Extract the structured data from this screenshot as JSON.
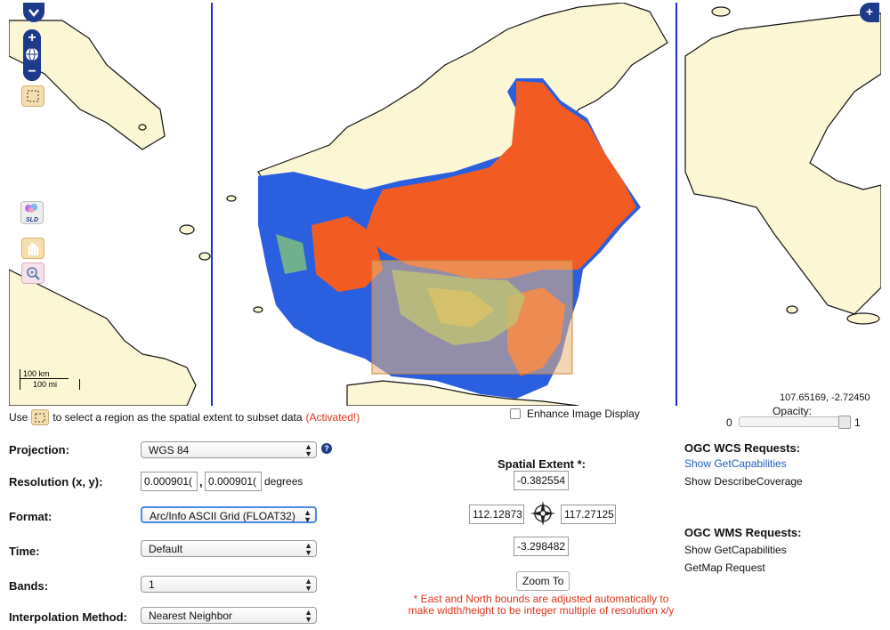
{
  "map": {
    "scale_km": "100 km",
    "scale_mi": "100 mi",
    "coordinates": "107.65169, -2.72450",
    "colors": {
      "sea": "#ffffff",
      "land": "#fbf6d4",
      "hot": "#f25c23",
      "cold": "#2a5fe0",
      "mid": "#8fd36b",
      "selection": "#e9b57a"
    }
  },
  "controls": {
    "zoom_in_icon": "plus-icon",
    "zoom_out_icon": "minus-icon",
    "globe_icon": "globe-icon",
    "sld_label": "SLD"
  },
  "instructions": {
    "prefix": "Use",
    "suffix": "to select a region as the spatial extent to subset data",
    "activated": "(Activated!)"
  },
  "enhance": {
    "label": "Enhance Image Display"
  },
  "opacity": {
    "label": "Opacity:",
    "min": "0",
    "max": "1",
    "value": 1.0
  },
  "form": {
    "projection": {
      "label": "Projection:",
      "value": "WGS 84"
    },
    "resolution": {
      "label": "Resolution (x, y):",
      "x": "0.000901(",
      "y": "0.000901(",
      "sep": ",",
      "unit": "degrees"
    },
    "format": {
      "label": "Format:",
      "value": "Arc/Info ASCII Grid (FLOAT32)"
    },
    "time": {
      "label": "Time:",
      "value": "Default"
    },
    "bands": {
      "label": "Bands:",
      "value": "1"
    },
    "interpolation": {
      "label": "Interpolation Method:",
      "value": "Nearest Neighbor"
    }
  },
  "extent": {
    "title": "Spatial Extent *:",
    "north": "-0.382554",
    "west": "112.12873",
    "east": "117.27125",
    "south": "-3.298482",
    "zoom_to": "Zoom To",
    "note": "* East and North bounds are adjusted automatically to make width/height to be integer multiple of resolution x/y"
  },
  "ogc": {
    "wcs_title": "OGC WCS Requests:",
    "wcs_capabilities": "Show GetCapabilities",
    "wcs_describe": "Show DescribeCoverage",
    "wms_title": "OGC WMS Requests:",
    "wms_capabilities": "Show GetCapabilities",
    "wms_getmap": "GetMap Request"
  }
}
